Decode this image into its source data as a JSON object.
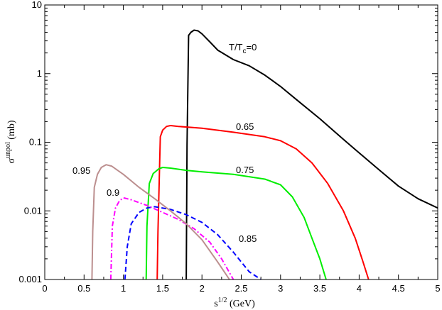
{
  "chart_data": {
    "type": "line",
    "xlabel": {
      "base": "s",
      "sup": "1/2",
      "rest": " (GeV)"
    },
    "ylabel": {
      "base": "σ",
      "sup": "unpol",
      "rest": " (mb)"
    },
    "xlim": [
      0,
      5
    ],
    "ylim": [
      0.001,
      10
    ],
    "yscale": "log",
    "grid": false,
    "xticks": [
      "0",
      "0.5",
      "1",
      "1.5",
      "2",
      "2.5",
      "3",
      "3.5",
      "4",
      "4.5",
      "5"
    ],
    "yticks": [
      "0.001",
      "0.01",
      "0.1",
      "1",
      "10"
    ],
    "series": [
      {
        "label": "T/T_c=0",
        "label_parts": {
          "base": "T/T",
          "sub": "c",
          "rest": "=0"
        },
        "color": "#000000",
        "dash": "solid",
        "points": [
          [
            1.8,
            0.001
          ],
          [
            1.81,
            0.09
          ],
          [
            1.83,
            3.6
          ],
          [
            1.86,
            4.0
          ],
          [
            1.9,
            4.3
          ],
          [
            1.95,
            4.2
          ],
          [
            2.0,
            3.8
          ],
          [
            2.1,
            2.9
          ],
          [
            2.2,
            2.2
          ],
          [
            2.4,
            1.6
          ],
          [
            2.6,
            1.3
          ],
          [
            2.8,
            0.95
          ],
          [
            3.0,
            0.65
          ],
          [
            3.2,
            0.42
          ],
          [
            3.5,
            0.22
          ],
          [
            3.8,
            0.11
          ],
          [
            4.0,
            0.07
          ],
          [
            4.25,
            0.04
          ],
          [
            4.5,
            0.023
          ],
          [
            4.75,
            0.015
          ],
          [
            5.0,
            0.011
          ]
        ]
      },
      {
        "label": "0.65",
        "color": "#ff0000",
        "dash": "solid",
        "points": [
          [
            1.43,
            0.001
          ],
          [
            1.44,
            0.005
          ],
          [
            1.47,
            0.12
          ],
          [
            1.5,
            0.15
          ],
          [
            1.55,
            0.17
          ],
          [
            1.6,
            0.175
          ],
          [
            1.7,
            0.17
          ],
          [
            2.0,
            0.16
          ],
          [
            2.4,
            0.14
          ],
          [
            2.8,
            0.12
          ],
          [
            3.0,
            0.105
          ],
          [
            3.2,
            0.08
          ],
          [
            3.4,
            0.05
          ],
          [
            3.6,
            0.025
          ],
          [
            3.8,
            0.01
          ],
          [
            3.95,
            0.004
          ],
          [
            4.05,
            0.0018
          ],
          [
            4.12,
            0.001
          ]
        ]
      },
      {
        "label": "0.75",
        "color": "#00ee00",
        "dash": "solid",
        "points": [
          [
            1.29,
            0.001
          ],
          [
            1.3,
            0.006
          ],
          [
            1.33,
            0.025
          ],
          [
            1.38,
            0.035
          ],
          [
            1.45,
            0.041
          ],
          [
            1.5,
            0.043
          ],
          [
            1.6,
            0.042
          ],
          [
            1.8,
            0.039
          ],
          [
            2.0,
            0.037
          ],
          [
            2.4,
            0.034
          ],
          [
            2.8,
            0.029
          ],
          [
            3.0,
            0.024
          ],
          [
            3.15,
            0.016
          ],
          [
            3.3,
            0.008
          ],
          [
            3.4,
            0.004
          ],
          [
            3.5,
            0.002
          ],
          [
            3.58,
            0.001
          ]
        ]
      },
      {
        "label": "0.85",
        "color": "#0000ff",
        "dash": "dash",
        "points": [
          [
            1.02,
            0.001
          ],
          [
            1.05,
            0.003
          ],
          [
            1.1,
            0.0065
          ],
          [
            1.2,
            0.0095
          ],
          [
            1.3,
            0.011
          ],
          [
            1.4,
            0.0115
          ],
          [
            1.6,
            0.0105
          ],
          [
            1.8,
            0.0088
          ],
          [
            2.0,
            0.0068
          ],
          [
            2.2,
            0.0045
          ],
          [
            2.4,
            0.0025
          ],
          [
            2.6,
            0.0013
          ],
          [
            2.75,
            0.001
          ]
        ]
      },
      {
        "label": "0.9",
        "color": "#ff00ff",
        "dash": "dashdot",
        "points": [
          [
            0.84,
            0.001
          ],
          [
            0.86,
            0.006
          ],
          [
            0.9,
            0.011
          ],
          [
            0.95,
            0.014
          ],
          [
            1.0,
            0.0155
          ],
          [
            1.1,
            0.0145
          ],
          [
            1.3,
            0.012
          ],
          [
            1.5,
            0.0095
          ],
          [
            1.7,
            0.0075
          ],
          [
            1.9,
            0.0055
          ],
          [
            2.1,
            0.0035
          ],
          [
            2.25,
            0.002
          ],
          [
            2.4,
            0.001
          ]
        ]
      },
      {
        "label": "0.95",
        "color": "#bc8f8f",
        "dash": "solid",
        "points": [
          [
            0.6,
            0.001
          ],
          [
            0.61,
            0.005
          ],
          [
            0.63,
            0.022
          ],
          [
            0.67,
            0.034
          ],
          [
            0.72,
            0.043
          ],
          [
            0.78,
            0.047
          ],
          [
            0.85,
            0.045
          ],
          [
            1.0,
            0.034
          ],
          [
            1.2,
            0.022
          ],
          [
            1.4,
            0.015
          ],
          [
            1.6,
            0.01
          ],
          [
            1.8,
            0.0065
          ],
          [
            2.0,
            0.0038
          ],
          [
            2.2,
            0.0018
          ],
          [
            2.35,
            0.001
          ]
        ]
      }
    ]
  }
}
